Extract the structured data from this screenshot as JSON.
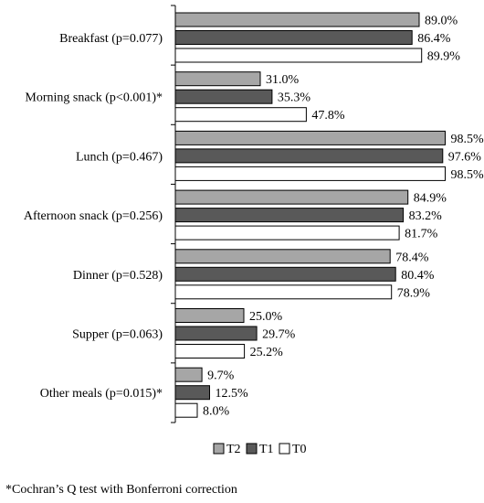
{
  "chart_data": {
    "type": "bar",
    "orientation": "horizontal",
    "categories": [
      "Breakfast (p=0.077)",
      "Morning snack (p<0.001)*",
      "Lunch (p=0.467)",
      "Afternoon snack (p=0.256)",
      "Dinner (p=0.528)",
      "Supper (p=0.063)",
      "Other meals (p=0.015)*"
    ],
    "series": [
      {
        "name": "T2",
        "values": [
          89.0,
          31.0,
          98.5,
          84.9,
          78.4,
          25.0,
          9.7
        ],
        "labels": [
          "89.0%",
          "31.0%",
          "98.5%",
          "84.9%",
          "78.4%",
          "25.0%",
          "9.7%"
        ],
        "color": "#a6a6a6"
      },
      {
        "name": "T1",
        "values": [
          86.4,
          35.3,
          97.6,
          83.2,
          80.4,
          29.7,
          12.5
        ],
        "labels": [
          "86.4%",
          "35.3%",
          "97.6%",
          "83.2%",
          "80.4%",
          "29.7%",
          "12.5%"
        ],
        "color": "#595959"
      },
      {
        "name": "T0",
        "values": [
          89.9,
          47.8,
          98.5,
          81.7,
          78.9,
          25.2,
          8.0
        ],
        "labels": [
          "89.9%",
          "47.8%",
          "98.5%",
          "81.7%",
          "78.9%",
          "25.2%",
          "8.0%"
        ],
        "color": "#ffffff"
      }
    ],
    "xlim": [
      0,
      100
    ],
    "grid": false,
    "legend_position": "bottom"
  },
  "footnote": "*Cochran’s Q test with Bonferroni correction"
}
